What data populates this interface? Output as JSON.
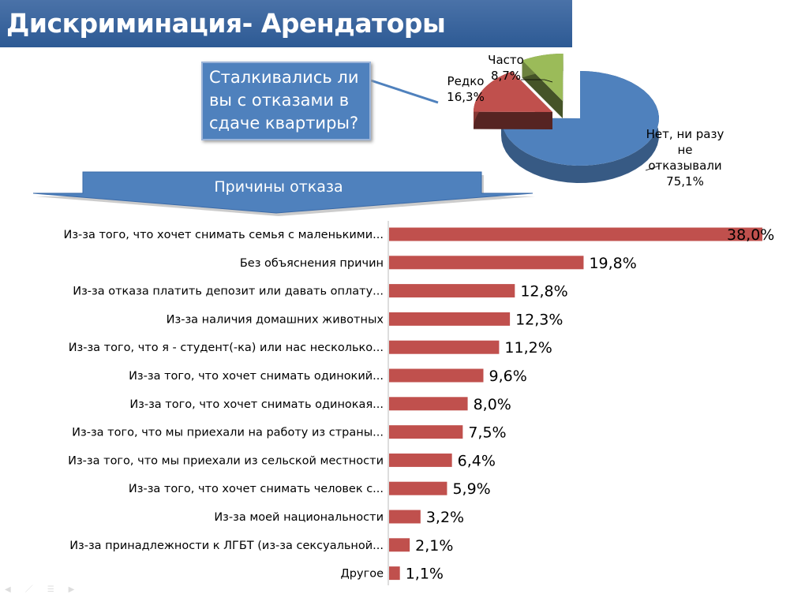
{
  "title": "Дискриминация- Арендаторы",
  "callout": "Сталкивались ли вы с отказами в сдаче квартиры?",
  "banner": "Причины отказа",
  "chart_data": [
    {
      "type": "pie",
      "question": "Сталкивались ли вы с отказами в сдаче квартиры?",
      "slices": [
        {
          "label": "Нет, ни разу не отказывали",
          "value": 75.1,
          "display": "75,1%",
          "color": "#4f81bd"
        },
        {
          "label": "Редко",
          "value": 16.3,
          "display": "16,3%",
          "color": "#c0504d"
        },
        {
          "label": "Часто",
          "value": 8.7,
          "display": "8,7%",
          "color": "#9bbb59"
        }
      ]
    },
    {
      "type": "bar",
      "orientation": "horizontal",
      "title": "Причины отказа",
      "color": "#c0504d",
      "xlim": [
        0,
        38
      ],
      "categories": [
        "Из-за того, что хочет снимать семья с маленькими...",
        "Без объяснения причин",
        "Из-за отказа платить депозит или давать оплату...",
        "Из-за наличия домашних животных",
        "Из-за того, что я - студент(-ка) или нас несколько...",
        "Из-за того, что хочет снимать одинокий...",
        "Из-за того, что хочет снимать одинокая...",
        "Из-за того, что мы приехали на работу из страны...",
        "Из-за того, что мы приехали из сельской местности",
        "Из-за того, что хочет снимать человек с...",
        "Из-за моей национальности",
        "Из-за принадлежности к ЛГБТ (из-за сексуальной...",
        "Другое"
      ],
      "values": [
        38.0,
        19.8,
        12.8,
        12.3,
        11.2,
        9.6,
        8.0,
        7.5,
        6.4,
        5.9,
        3.2,
        2.1,
        1.1
      ],
      "labels": [
        "38,0%",
        "19,8%",
        "12,8%",
        "12,3%",
        "11,2%",
        "9,6%",
        "8,0%",
        "7,5%",
        "6,4%",
        "5,9%",
        "3,2%",
        "2,1%",
        "1,1%"
      ]
    }
  ]
}
